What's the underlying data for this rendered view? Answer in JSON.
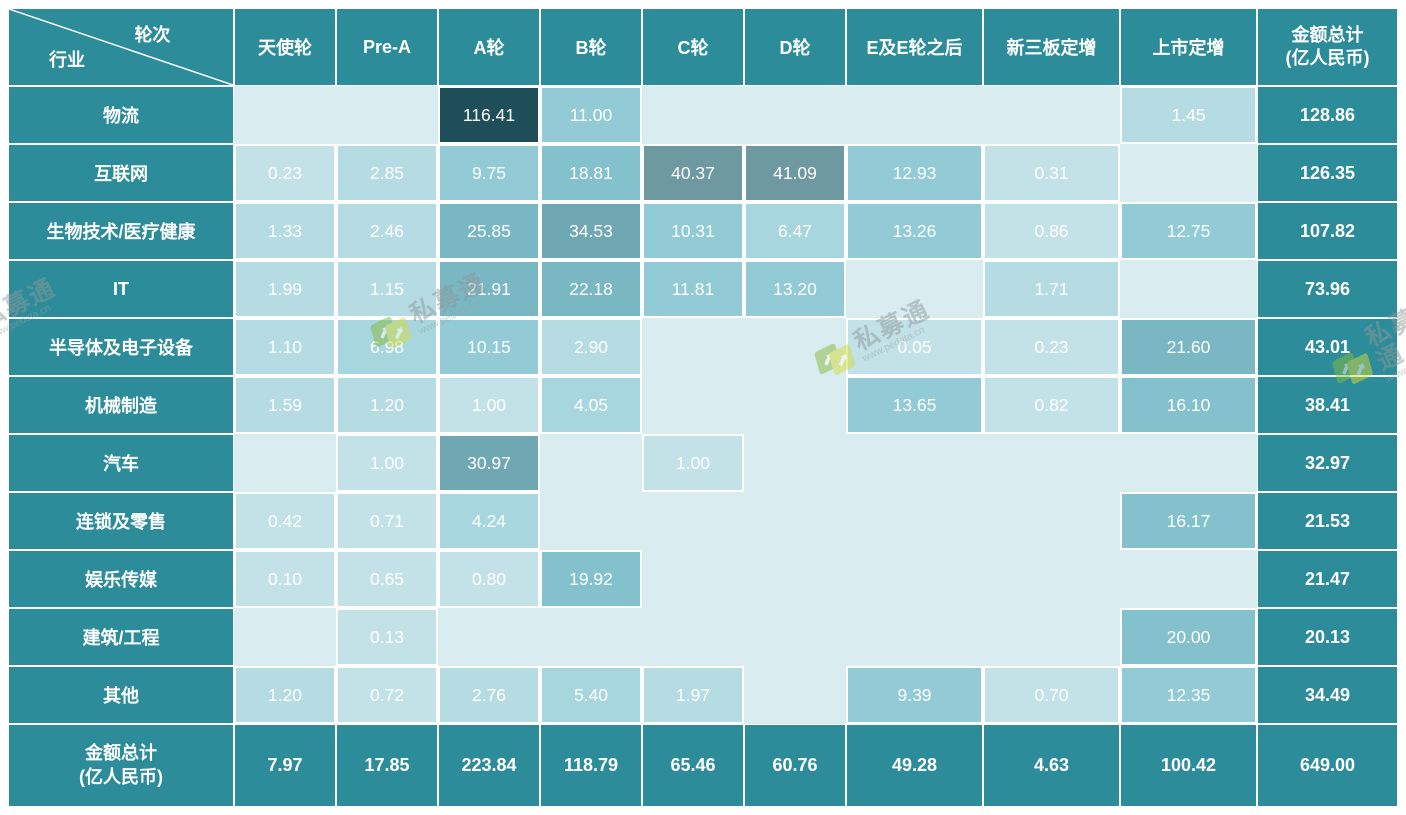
{
  "theme": {
    "teal": "#2C8C9A",
    "grid_line": "#FFFFFF",
    "text": "#FFFFFF",
    "empty_cell": "#D9ECF0",
    "scale": [
      {
        "max": 1.0,
        "color": "#C2E2E8"
      },
      {
        "max": 3.0,
        "color": "#B5DCE3"
      },
      {
        "max": 8.0,
        "color": "#A7D6DF"
      },
      {
        "max": 15.0,
        "color": "#92CBD5"
      },
      {
        "max": 20.0,
        "color": "#83C1CD"
      },
      {
        "max": 27.0,
        "color": "#79B7C3"
      },
      {
        "max": 36.0,
        "color": "#6FA8B3"
      },
      {
        "max": 60.0,
        "color": "#6E99A1"
      },
      {
        "max": 99999,
        "color": "#1E4E58"
      }
    ]
  },
  "chart_data": {
    "type": "heatmap",
    "corner": {
      "top_label": "轮次",
      "bottom_label": "行业"
    },
    "columns": [
      "天使轮",
      "Pre-A",
      "A轮",
      "B轮",
      "C轮",
      "D轮",
      "E及E轮之后",
      "新三板定增",
      "上市定增"
    ],
    "total_col": {
      "line1": "金额总计",
      "line2": "(亿人民币)"
    },
    "rows": [
      {
        "label": "物流",
        "values": [
          null,
          null,
          "116.41",
          "11.00",
          null,
          null,
          null,
          null,
          "1.45"
        ],
        "total": "128.86"
      },
      {
        "label": "互联网",
        "values": [
          "0.23",
          "2.85",
          "9.75",
          "18.81",
          "40.37",
          "41.09",
          "12.93",
          "0.31",
          null
        ],
        "total": "126.35"
      },
      {
        "label": "生物技术/医疗健康",
        "values": [
          "1.33",
          "2.46",
          "25.85",
          "34.53",
          "10.31",
          "6.47",
          "13.26",
          "0.86",
          "12.75"
        ],
        "total": "107.82"
      },
      {
        "label": "IT",
        "values": [
          "1.99",
          "1.15",
          "21.91",
          "22.18",
          "11.81",
          "13.20",
          null,
          "1.71",
          null
        ],
        "total": "73.96"
      },
      {
        "label": "半导体及电子设备",
        "values": [
          "1.10",
          "6.98",
          "10.15",
          "2.90",
          null,
          null,
          "0.05",
          "0.23",
          "21.60"
        ],
        "total": "43.01"
      },
      {
        "label": "机械制造",
        "values": [
          "1.59",
          "1.20",
          "1.00",
          "4.05",
          null,
          null,
          "13.65",
          "0.82",
          "16.10"
        ],
        "total": "38.41"
      },
      {
        "label": "汽车",
        "values": [
          null,
          "1.00",
          "30.97",
          null,
          "1.00",
          null,
          null,
          null,
          null
        ],
        "total": "32.97"
      },
      {
        "label": "连锁及零售",
        "values": [
          "0.42",
          "0.71",
          "4.24",
          null,
          null,
          null,
          null,
          null,
          "16.17"
        ],
        "total": "21.53"
      },
      {
        "label": "娱乐传媒",
        "values": [
          "0.10",
          "0.65",
          "0.80",
          "19.92",
          null,
          null,
          null,
          null,
          null
        ],
        "total": "21.47"
      },
      {
        "label": "建筑/工程",
        "values": [
          null,
          "0.13",
          null,
          null,
          null,
          null,
          null,
          null,
          "20.00"
        ],
        "total": "20.13"
      },
      {
        "label": "其他",
        "values": [
          "1.20",
          "0.72",
          "2.76",
          "5.40",
          "1.97",
          null,
          "9.39",
          "0.70",
          "12.35"
        ],
        "total": "34.49"
      }
    ],
    "total_row": {
      "line1": "金额总计",
      "line2": "(亿人民币)",
      "values": [
        "7.97",
        "17.85",
        "223.84",
        "118.79",
        "65.46",
        "60.76",
        "49.28",
        "4.63",
        "100.42"
      ],
      "total": "649.00"
    }
  },
  "watermark": {
    "brand": "私募通",
    "site": "www.pedata.cn"
  }
}
